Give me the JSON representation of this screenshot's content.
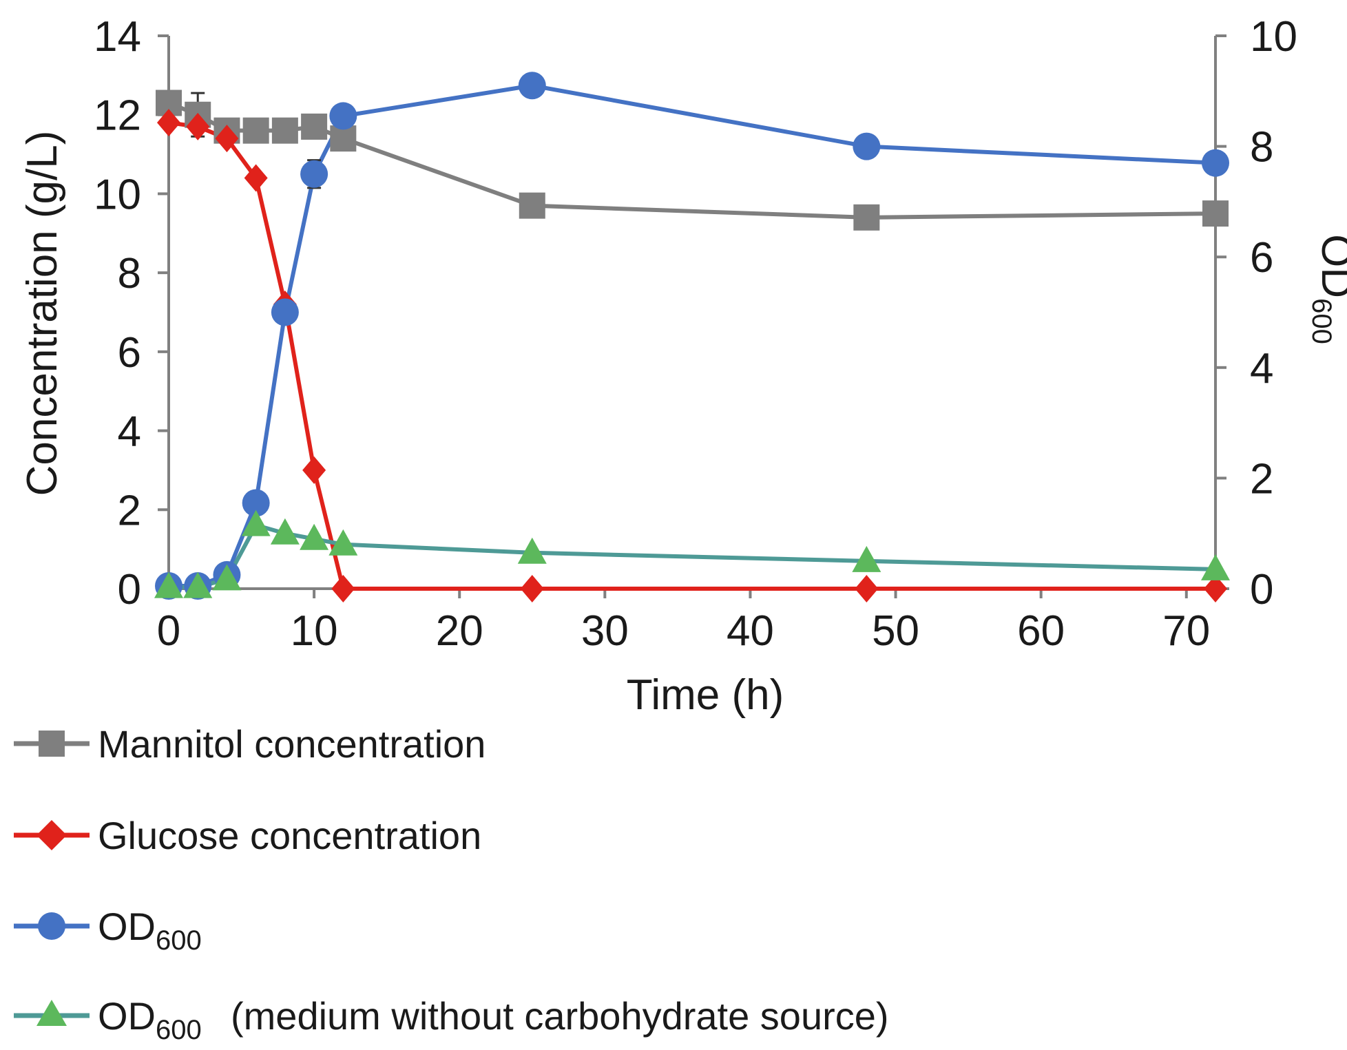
{
  "chart_data": {
    "type": "line",
    "title": "",
    "xlabel": "Time (h)",
    "ylabel": "Concentration (g/L)",
    "y2label": {
      "main": "OD",
      "subscript": "600"
    },
    "xlim": [
      0,
      72
    ],
    "ylim": [
      0,
      14
    ],
    "y2lim": [
      0,
      10
    ],
    "xticks": [
      "0",
      "10",
      "20",
      "30",
      "40",
      "50",
      "60",
      "70"
    ],
    "yticks": [
      "0",
      "2",
      "4",
      "6",
      "8",
      "10",
      "12",
      "14"
    ],
    "y2ticks": [
      "0",
      "2",
      "4",
      "6",
      "8",
      "10"
    ],
    "legend_position": "bottom-left",
    "series": [
      {
        "key": "mannitol",
        "name": "Mannitol concentration",
        "axis": "left",
        "marker": "square",
        "color": "#7f7f7f",
        "x": [
          0,
          2,
          4,
          6,
          8,
          10,
          12,
          25,
          48,
          72
        ],
        "values": [
          12.3,
          12.0,
          11.6,
          11.6,
          11.6,
          11.7,
          11.4,
          9.7,
          9.4,
          9.5
        ],
        "errors": [
          0.1,
          0.55,
          0.05,
          0.05,
          0.05,
          0.05,
          0.05,
          0,
          0,
          0
        ]
      },
      {
        "key": "glucose",
        "name": "Glucose concentration",
        "axis": "left",
        "marker": "diamond",
        "color": "#e0221b",
        "x": [
          0,
          2,
          4,
          6,
          8,
          10,
          12,
          25,
          48,
          72
        ],
        "values": [
          11.8,
          11.7,
          11.4,
          10.4,
          7.2,
          3.0,
          0,
          0,
          0,
          0
        ],
        "errors": [
          0,
          0,
          0,
          0,
          0,
          0,
          0,
          0,
          0,
          0
        ]
      },
      {
        "key": "od600",
        "name_main": "OD",
        "name_sub": "600",
        "axis": "right",
        "marker": "circle",
        "color": "#4472c4",
        "x": [
          0,
          2,
          4,
          6,
          8,
          10,
          12,
          25,
          48,
          72
        ],
        "values": [
          0.05,
          0.05,
          0.25,
          1.55,
          5.0,
          7.5,
          8.55,
          9.1,
          8.0,
          7.7
        ],
        "errors": [
          0,
          0,
          0,
          0.1,
          0,
          0.25,
          0,
          0,
          0,
          0
        ]
      },
      {
        "key": "od600_no_carb",
        "name_main": "OD",
        "name_sub": "600",
        "name_suffix": "(medium without carbohydrate source)",
        "axis": "right",
        "marker": "triangle",
        "color": "#4e9a96",
        "marker_color": "#5cb85c",
        "x": [
          0,
          2,
          4,
          6,
          8,
          10,
          12,
          25,
          48,
          72
        ],
        "values": [
          0.03,
          0.03,
          0.17,
          1.15,
          1.0,
          0.9,
          0.8,
          0.65,
          0.5,
          0.35
        ],
        "errors": [
          0,
          0,
          0,
          0,
          0,
          0,
          0,
          0,
          0,
          0
        ]
      }
    ]
  }
}
